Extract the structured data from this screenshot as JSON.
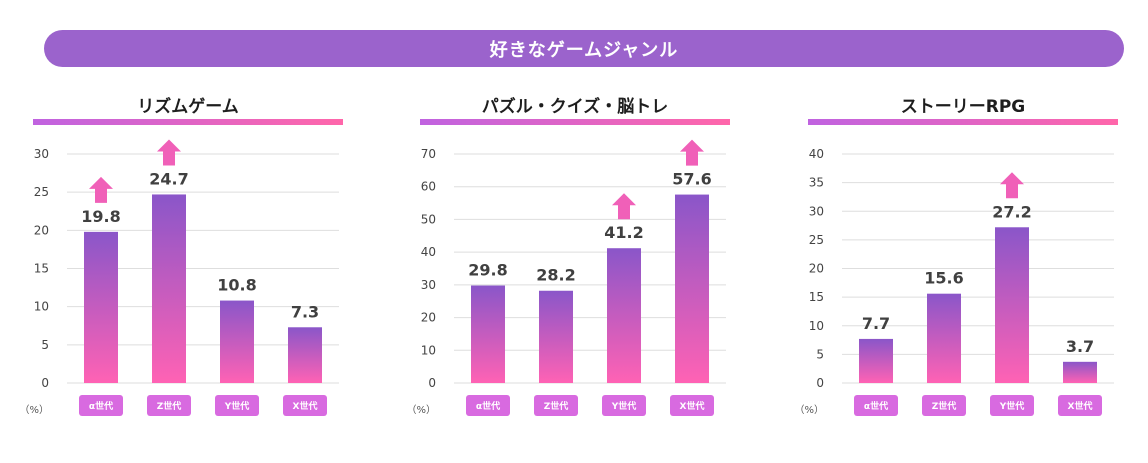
{
  "header": {
    "title": "好きなゲームジャンル"
  },
  "chart_data": [
    {
      "type": "bar",
      "title": "リズムゲーム",
      "categories": [
        "α世代",
        "Z世代",
        "Y世代",
        "X世代"
      ],
      "values": [
        19.8,
        24.7,
        10.8,
        7.3
      ],
      "value_labels": [
        "19.8",
        "24.7",
        "10.8",
        "7.3"
      ],
      "highlighted": [
        true,
        true,
        false,
        false
      ],
      "yticks": [
        0,
        5,
        10,
        15,
        20,
        25,
        30
      ],
      "ylim": [
        0,
        30
      ],
      "ylabel": "（%）",
      "grid": true
    },
    {
      "type": "bar",
      "title": "パズル・クイズ・脳トレ",
      "categories": [
        "α世代",
        "Z世代",
        "Y世代",
        "X世代"
      ],
      "values": [
        29.8,
        28.2,
        41.2,
        57.6
      ],
      "value_labels": [
        "29.8",
        "28.2",
        "41.2",
        "57.6"
      ],
      "highlighted": [
        false,
        false,
        true,
        true
      ],
      "yticks": [
        0,
        10,
        20,
        30,
        40,
        50,
        60,
        70
      ],
      "ylim": [
        0,
        70
      ],
      "ylabel": "（%）",
      "grid": true
    },
    {
      "type": "bar",
      "title": "ストーリーRPG",
      "categories": [
        "α世代",
        "Z世代",
        "Y世代",
        "X世代"
      ],
      "values": [
        7.7,
        15.6,
        27.2,
        3.7
      ],
      "value_labels": [
        "7.7",
        "15.6",
        "27.2",
        "3.7"
      ],
      "highlighted": [
        false,
        false,
        true,
        false
      ],
      "yticks": [
        0,
        5,
        10,
        15,
        20,
        25,
        30,
        35,
        40
      ],
      "ylim": [
        0,
        40
      ],
      "ylabel": "（%）",
      "grid": true
    }
  ],
  "colors": {
    "banner": "#9b63cc",
    "bar_top": "#8a56c9",
    "bar_bottom": "#ff62b4",
    "arrow": "#f060b8",
    "category_badge": "#d86ae0"
  }
}
